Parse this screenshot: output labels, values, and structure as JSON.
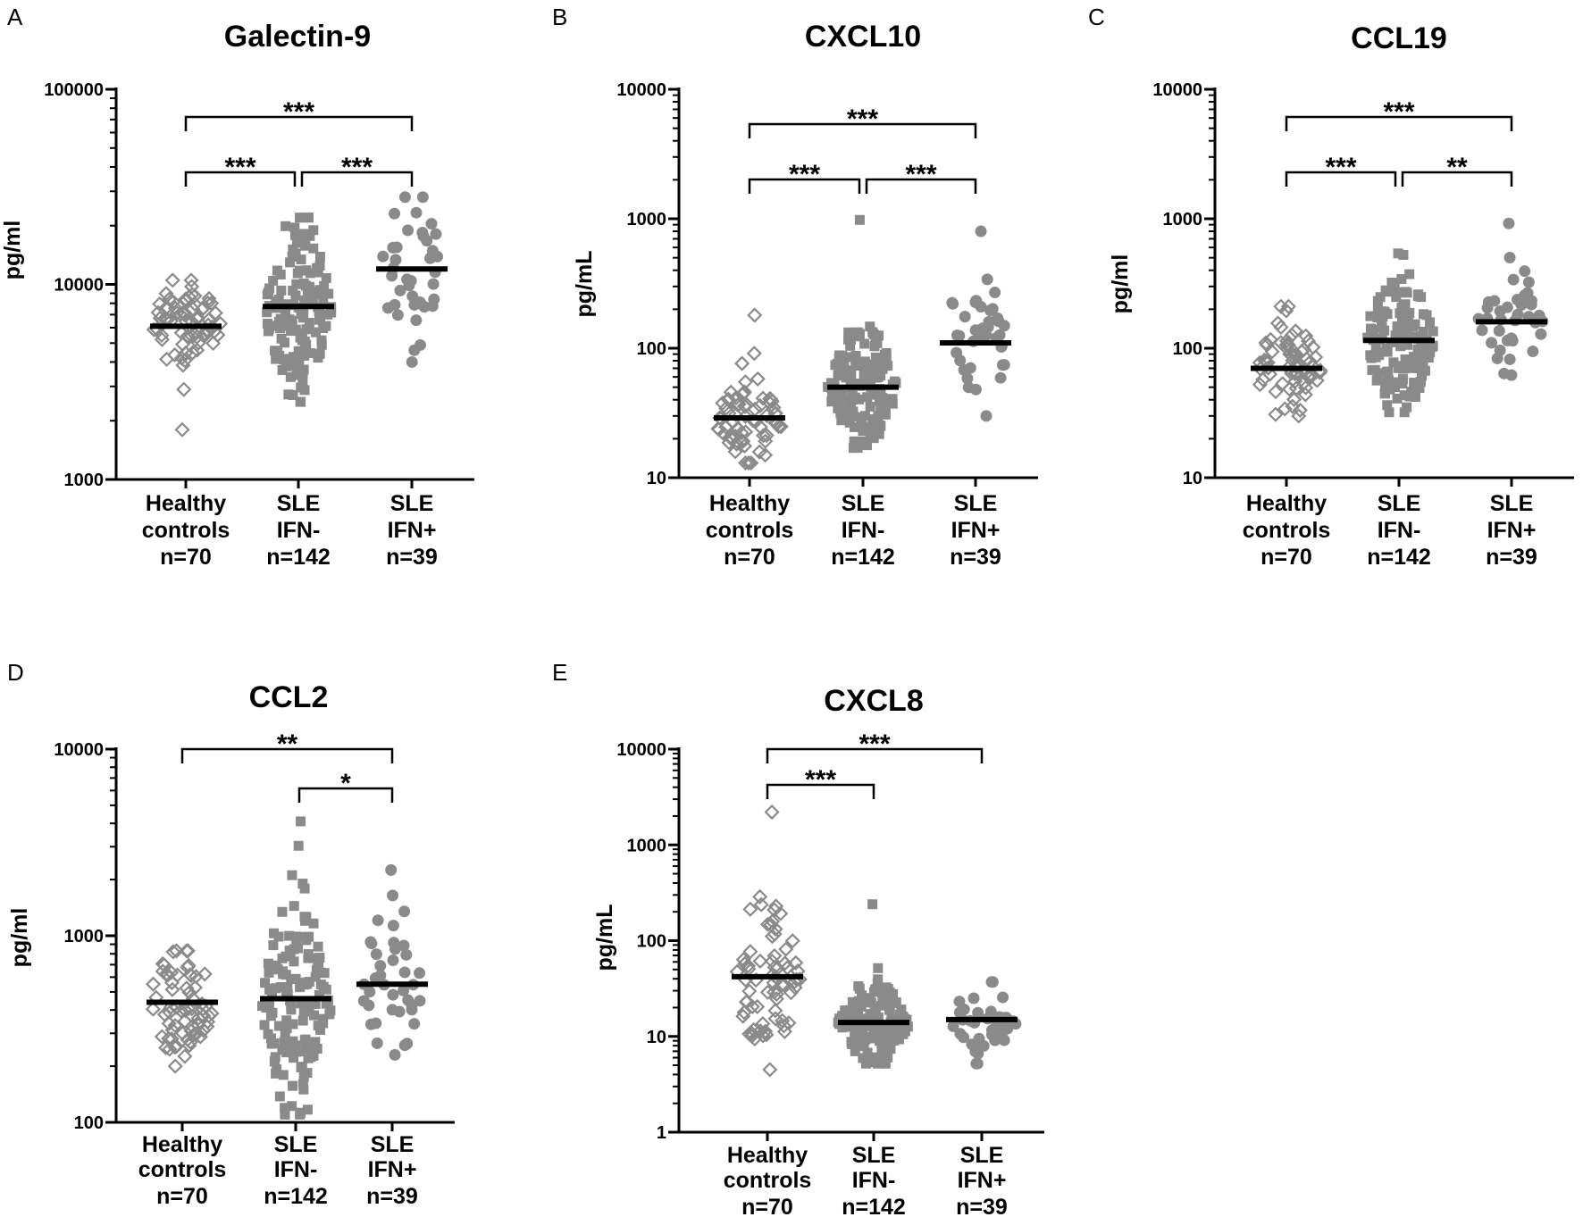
{
  "figure": {
    "colors": {
      "points": "#8a8a8a",
      "median": "#000000",
      "axis": "#000000"
    }
  },
  "chart_data": [
    {
      "panel": "A",
      "type": "scatter",
      "title": "Galectin-9",
      "ylabel": "pg/ml",
      "yscale": "log",
      "ylim": [
        1000,
        100000
      ],
      "yticks": [
        "1000",
        "10000",
        "100000"
      ],
      "categories": [
        {
          "lines": [
            "Healthy",
            "controls",
            "n=70"
          ]
        },
        {
          "lines": [
            "SLE",
            "IFN-",
            "n=142"
          ]
        },
        {
          "lines": [
            "SLE",
            "IFN+",
            "n=39"
          ]
        }
      ],
      "series": [
        {
          "name": "Healthy controls",
          "marker": "diamond-open",
          "median": 6100,
          "min": 1800,
          "max": 10500
        },
        {
          "name": "SLE IFN-",
          "marker": "square",
          "median": 7700,
          "min": 2500,
          "max": 22000
        },
        {
          "name": "SLE IFN+",
          "marker": "circle",
          "median": 12000,
          "min": 4000,
          "max": 28000
        }
      ],
      "brackets": [
        {
          "from": 0,
          "to": 2,
          "label": "***",
          "level": 0
        },
        {
          "from": 0,
          "to": 1,
          "label": "***",
          "level": 1
        },
        {
          "from": 1,
          "to": 2,
          "label": "***",
          "level": 1
        }
      ]
    },
    {
      "panel": "B",
      "type": "scatter",
      "title": "CXCL10",
      "ylabel": "pg/mL",
      "yscale": "log",
      "ylim": [
        10,
        10000
      ],
      "yticks": [
        "10",
        "100",
        "1000",
        "10000"
      ],
      "categories": [
        {
          "lines": [
            "Healthy",
            "controls",
            "n=70"
          ]
        },
        {
          "lines": [
            "SLE",
            "IFN-",
            "n=142"
          ]
        },
        {
          "lines": [
            "SLE",
            "IFN+",
            "n=39"
          ]
        }
      ],
      "series": [
        {
          "name": "Healthy controls",
          "marker": "diamond-open",
          "median": 29,
          "min": 13,
          "max": 180
        },
        {
          "name": "SLE IFN-",
          "marker": "square",
          "median": 50,
          "min": 17,
          "max": 980
        },
        {
          "name": "SLE IFN+",
          "marker": "circle",
          "median": 110,
          "min": 30,
          "max": 800
        }
      ],
      "brackets": [
        {
          "from": 0,
          "to": 2,
          "label": "***",
          "level": 0
        },
        {
          "from": 0,
          "to": 1,
          "label": "***",
          "level": 1
        },
        {
          "from": 1,
          "to": 2,
          "label": "***",
          "level": 1
        }
      ]
    },
    {
      "panel": "C",
      "type": "scatter",
      "title": "CCL19",
      "ylabel": "pg/ml",
      "yscale": "log",
      "ylim": [
        10,
        10000
      ],
      "yticks": [
        "10",
        "100",
        "1000",
        "10000"
      ],
      "categories": [
        {
          "lines": [
            "Healthy",
            "controls",
            "n=70"
          ]
        },
        {
          "lines": [
            "SLE",
            "IFN-",
            "n=142"
          ]
        },
        {
          "lines": [
            "SLE",
            "IFN+",
            "n=39"
          ]
        }
      ],
      "series": [
        {
          "name": "Healthy controls",
          "marker": "diamond-open",
          "median": 70,
          "min": 30,
          "max": 210
        },
        {
          "name": "SLE IFN-",
          "marker": "square",
          "median": 115,
          "min": 32,
          "max": 540
        },
        {
          "name": "SLE IFN+",
          "marker": "circle",
          "median": 160,
          "min": 62,
          "max": 920
        }
      ],
      "brackets": [
        {
          "from": 0,
          "to": 2,
          "label": "***",
          "level": 0
        },
        {
          "from": 0,
          "to": 1,
          "label": "***",
          "level": 1
        },
        {
          "from": 1,
          "to": 2,
          "label": "**",
          "level": 1
        }
      ]
    },
    {
      "panel": "D",
      "type": "scatter",
      "title": "CCL2",
      "ylabel": "pg/ml",
      "yscale": "log",
      "ylim": [
        100,
        10000
      ],
      "yticks": [
        "100",
        "1000",
        "10000"
      ],
      "categories": [
        {
          "lines": [
            "Healthy",
            "controls",
            "n=70"
          ]
        },
        {
          "lines": [
            "SLE",
            "IFN-",
            "n=142"
          ]
        },
        {
          "lines": [
            "SLE",
            "IFN+",
            "n=39"
          ]
        }
      ],
      "series": [
        {
          "name": "Healthy controls",
          "marker": "diamond-open",
          "median": 440,
          "min": 200,
          "max": 830
        },
        {
          "name": "SLE IFN-",
          "marker": "square",
          "median": 460,
          "min": 110,
          "max": 4100
        },
        {
          "name": "SLE IFN+",
          "marker": "circle",
          "median": 550,
          "min": 230,
          "max": 2250
        }
      ],
      "brackets": [
        {
          "from": 0,
          "to": 2,
          "label": "**",
          "level": 0
        },
        {
          "from": 1,
          "to": 2,
          "label": "*",
          "level": 1
        }
      ]
    },
    {
      "panel": "E",
      "type": "scatter",
      "title": "CXCL8",
      "ylabel": "pg/mL",
      "yscale": "log",
      "ylim": [
        1,
        10000
      ],
      "yticks": [
        "1",
        "10",
        "100",
        "1000",
        "10000"
      ],
      "categories": [
        {
          "lines": [
            "Healthy",
            "controls",
            "n=70"
          ]
        },
        {
          "lines": [
            "SLE",
            "IFN-",
            "n=142"
          ]
        },
        {
          "lines": [
            "SLE",
            "IFN+",
            "n=39"
          ]
        }
      ],
      "series": [
        {
          "name": "Healthy controls",
          "marker": "diamond-open",
          "median": 42,
          "min": 4.5,
          "max": 2200
        },
        {
          "name": "SLE IFN-",
          "marker": "square",
          "median": 14,
          "min": 5.2,
          "max": 240
        },
        {
          "name": "SLE IFN+",
          "marker": "circle",
          "median": 15,
          "min": 5.2,
          "max": 37
        }
      ],
      "brackets": [
        {
          "from": 0,
          "to": 2,
          "label": "***",
          "level": 0
        },
        {
          "from": 0,
          "to": 1,
          "label": "***",
          "level": 1
        }
      ]
    }
  ]
}
